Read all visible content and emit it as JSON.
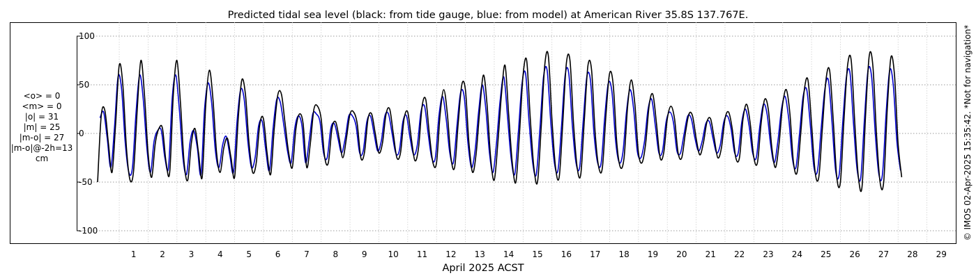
{
  "chart_data": {
    "type": "line",
    "title": "Predicted tidal sea level (black: from tide gauge, blue: from model) at American River 35.8S 137.767E.",
    "xlabel": "April 2025 ACST",
    "ylabel": "",
    "x_tick_labels": [
      "1",
      "2",
      "3",
      "4",
      "5",
      "6",
      "7",
      "8",
      "9",
      "10",
      "11",
      "12",
      "13",
      "14",
      "15",
      "16",
      "17",
      "18",
      "19",
      "20",
      "21",
      "22",
      "23",
      "24",
      "25",
      "26",
      "27",
      "28",
      "29"
    ],
    "y_ticks": [
      100,
      50,
      0,
      -50,
      -100
    ],
    "xlim": [
      "2025-03-31T06:00",
      "2025-04-30T00:00"
    ],
    "ylim": [
      -110,
      115
    ],
    "grid": true,
    "copyright": "© IMOS 02-Apr-2025 15:35:42. *Not for navigation*",
    "stats_lines": [
      "<o> = 0",
      "<m> = 0",
      "|o| = 31",
      "|m| = 25",
      "|m-o| = 27",
      "|m-o|@-2h=13",
      "cm"
    ],
    "colors": {
      "gauge": "#000000",
      "model": "#0000cc",
      "grid": "#9a9a9a"
    },
    "series": [
      {
        "key": "gauge",
        "x_start": "2025-03-31T06:00",
        "x_step_hours": 3,
        "values": [
          -50,
          18,
          24,
          -10,
          -40,
          10,
          70,
          50,
          -15,
          -48,
          -38,
          25,
          75,
          40,
          -20,
          -45,
          -10,
          5,
          5,
          -30,
          -40,
          40,
          75,
          30,
          -30,
          -48,
          -10,
          5,
          -20,
          -45,
          30,
          65,
          35,
          -20,
          -40,
          -15,
          -5,
          -25,
          -45,
          15,
          55,
          40,
          -10,
          -40,
          -30,
          10,
          15,
          -20,
          -42,
          5,
          40,
          40,
          10,
          -20,
          -35,
          5,
          20,
          10,
          -35,
          -10,
          25,
          28,
          15,
          -25,
          -30,
          5,
          12,
          -5,
          -25,
          -5,
          20,
          22,
          10,
          -25,
          -20,
          15,
          20,
          0,
          -20,
          -10,
          20,
          25,
          0,
          -25,
          -20,
          15,
          22,
          -5,
          -28,
          -15,
          28,
          35,
          0,
          -30,
          -30,
          20,
          45,
          20,
          -25,
          -35,
          10,
          50,
          45,
          -10,
          -40,
          -20,
          25,
          60,
          30,
          -25,
          -48,
          -10,
          40,
          70,
          20,
          -30,
          -50,
          0,
          60,
          75,
          15,
          -35,
          -50,
          5,
          70,
          80,
          15,
          -35,
          -45,
          10,
          72,
          75,
          10,
          -35,
          -42,
          15,
          70,
          65,
          0,
          -35,
          -35,
          20,
          62,
          50,
          -10,
          -35,
          -25,
          28,
          55,
          30,
          -20,
          -30,
          -10,
          30,
          40,
          10,
          -25,
          -20,
          15,
          28,
          15,
          -20,
          -25,
          0,
          20,
          18,
          -5,
          -22,
          -10,
          12,
          15,
          -5,
          -25,
          -15,
          15,
          22,
          5,
          -25,
          -25,
          15,
          30,
          10,
          -25,
          -30,
          10,
          35,
          25,
          -15,
          -35,
          -10,
          30,
          45,
          20,
          -30,
          -40,
          0,
          45,
          55,
          10,
          -40,
          -45,
          5,
          55,
          65,
          15,
          -45,
          -50,
          15,
          70,
          75,
          10,
          -45,
          -55,
          20,
          80,
          70,
          0,
          -50,
          -50,
          25,
          78,
          60,
          -10,
          -45
        ]
      },
      {
        "key": "model",
        "x_start": "2025-03-31T05:00",
        "x_step_hours": 3,
        "values": [
          -45,
          16,
          22,
          -5,
          -35,
          5,
          58,
          45,
          -10,
          -40,
          -35,
          22,
          60,
          35,
          -15,
          -40,
          -8,
          3,
          3,
          -25,
          -35,
          35,
          60,
          25,
          -25,
          -42,
          -8,
          3,
          -15,
          -42,
          25,
          52,
          30,
          -18,
          -35,
          -12,
          -3,
          -22,
          -40,
          12,
          45,
          35,
          -8,
          -35,
          -25,
          8,
          12,
          -18,
          -38,
          5,
          35,
          32,
          8,
          -18,
          -30,
          5,
          18,
          8,
          -30,
          -8,
          20,
          20,
          12,
          -20,
          -25,
          5,
          10,
          -5,
          -20,
          -5,
          18,
          18,
          8,
          -20,
          -18,
          12,
          18,
          0,
          -18,
          -8,
          18,
          20,
          0,
          -20,
          -18,
          12,
          18,
          -5,
          -22,
          -12,
          22,
          28,
          0,
          -25,
          -25,
          18,
          38,
          15,
          -20,
          -30,
          8,
          42,
          38,
          -8,
          -35,
          -18,
          22,
          50,
          25,
          -20,
          -40,
          -8,
          35,
          58,
          18,
          -25,
          -42,
          0,
          50,
          62,
          12,
          -30,
          -42,
          5,
          58,
          65,
          12,
          -30,
          -38,
          8,
          60,
          62,
          8,
          -30,
          -35,
          12,
          58,
          55,
          0,
          -30,
          -30,
          18,
          52,
          42,
          -8,
          -30,
          -20,
          22,
          45,
          25,
          -18,
          -25,
          -8,
          25,
          35,
          8,
          -20,
          -18,
          12,
          22,
          12,
          -18,
          -20,
          0,
          18,
          15,
          -5,
          -18,
          -8,
          10,
          12,
          -5,
          -20,
          -12,
          12,
          18,
          5,
          -20,
          -20,
          12,
          25,
          8,
          -20,
          -25,
          8,
          30,
          20,
          -12,
          -30,
          -8,
          25,
          38,
          15,
          -25,
          -35,
          0,
          38,
          45,
          8,
          -35,
          -38,
          5,
          45,
          55,
          12,
          -38,
          -42,
          12,
          58,
          62,
          8,
          -38,
          -45,
          15,
          65,
          58,
          0,
          -42,
          -42,
          20,
          65,
          50,
          -8,
          -38
        ]
      }
    ]
  }
}
